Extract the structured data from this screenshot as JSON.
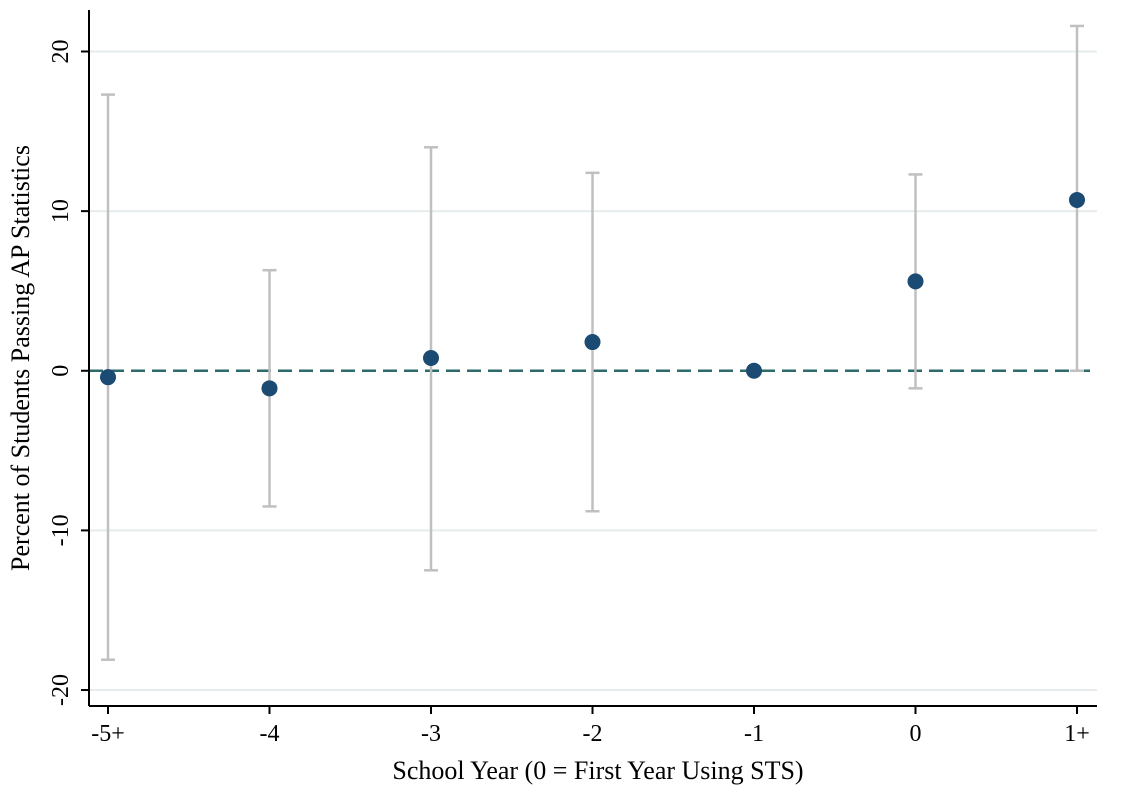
{
  "chart_data": {
    "type": "scatter",
    "title": "",
    "xlabel": "School Year (0 = First Year Using STS)",
    "ylabel": "Percent of Students Passing AP Statistics",
    "categories": [
      "-5+",
      "-4",
      "-3",
      "-2",
      "-1",
      "0",
      "1+"
    ],
    "series": [
      {
        "values": [
          -0.4,
          -1.1,
          0.8,
          1.8,
          0.0,
          5.6,
          10.7
        ],
        "ci_low": [
          -18.1,
          -8.5,
          -12.5,
          -8.8,
          null,
          -1.1,
          0.0
        ],
        "ci_high": [
          17.3,
          6.3,
          14.0,
          12.4,
          null,
          12.3,
          21.6
        ]
      }
    ],
    "ylim": [
      -21,
      22.6
    ],
    "yticks": [
      -20,
      -10,
      0,
      10,
      20
    ],
    "reference_line": {
      "y": 0,
      "style": "dashed"
    },
    "grid": true,
    "colors": {
      "marker": "#1b4a72",
      "ci": "#c0c0c0",
      "reference": "#2e6a6a",
      "grid": "#e6ecee"
    }
  }
}
